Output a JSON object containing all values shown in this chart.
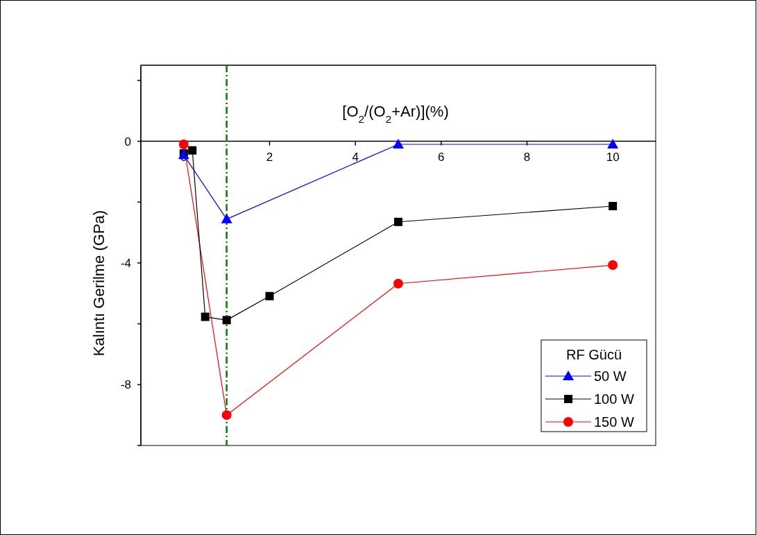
{
  "chart_data": {
    "type": "line",
    "xlabel": "[O$_{2}$/(O$_{2}$+Ar)](%)",
    "ylabel": "Kalıntı Gerilme (GPa)",
    "legend_title": "RF Gücü",
    "xlim": [
      -1,
      11
    ],
    "ylim": [
      -10,
      2.5
    ],
    "xticks": [
      0,
      2,
      4,
      6,
      8,
      10
    ],
    "yticks": [
      {
        "value": 2,
        "label": null
      },
      0,
      {
        "value": -2,
        "label": null
      },
      -4,
      {
        "value": -6,
        "label": null
      },
      -8,
      {
        "value": -10,
        "label": null
      }
    ],
    "legend": "bottom right",
    "grid": false,
    "line_style": "solid",
    "series": [
      {
        "name": "50 W",
        "color": "#0000ff",
        "marker": "triangle",
        "x": [
          0,
          1,
          5,
          10
        ],
        "values": [
          -0.45,
          -2.56,
          -0.1,
          -0.1
        ]
      },
      {
        "name": "100 W",
        "color": "#000000",
        "marker": "square",
        "x": [
          0,
          0.2,
          0.5,
          1,
          2,
          5,
          10
        ],
        "values": [
          -0.4,
          -0.3,
          -5.77,
          -5.88,
          -5.09,
          -2.65,
          -2.13
        ]
      },
      {
        "name": "150 W",
        "color": "#ff0000",
        "marker": "circle",
        "x": [
          0,
          1,
          5,
          10
        ],
        "values": [
          -0.1,
          -9.0,
          -4.68,
          -4.07
        ]
      }
    ],
    "ref_lines": [
      {
        "axis": "x",
        "value": 1,
        "label": null,
        "color": "#008000",
        "line_style": "dashdot"
      }
    ]
  }
}
